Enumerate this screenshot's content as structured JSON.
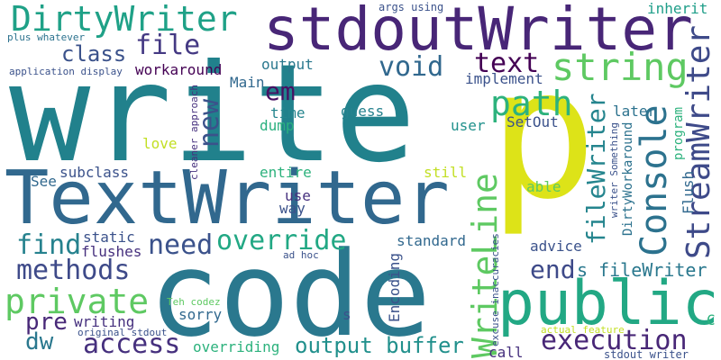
{
  "words": [
    {
      "text": "write",
      "color": "#21818c"
    },
    {
      "text": "code",
      "color": "#2a788e"
    },
    {
      "text": "TextWriter",
      "color": "#31688e"
    },
    {
      "text": "stdoutWriter",
      "color": "#482677"
    },
    {
      "text": "p",
      "color": "#dde318"
    },
    {
      "text": "public",
      "color": "#22a884"
    },
    {
      "text": "DirtyWriter",
      "color": "#1fa187"
    },
    {
      "text": "string",
      "color": "#5ec962"
    },
    {
      "text": "file",
      "color": "#443983"
    },
    {
      "text": "class",
      "color": "#3b528b"
    },
    {
      "text": "void",
      "color": "#31688e"
    },
    {
      "text": "text",
      "color": "#440154"
    },
    {
      "text": "path",
      "color": "#2db27d"
    },
    {
      "text": "em",
      "color": "#471063"
    },
    {
      "text": "new",
      "color": "#3b528b"
    },
    {
      "text": "Console",
      "color": "#2c728e"
    },
    {
      "text": "StreamWriter",
      "color": "#3e4a89"
    },
    {
      "text": "fileWriter",
      "color": "#25858e"
    },
    {
      "text": "override",
      "color": "#22a884"
    },
    {
      "text": "need",
      "color": "#3b528b"
    },
    {
      "text": "find",
      "color": "#26828e"
    },
    {
      "text": "methods",
      "color": "#3e4a89"
    },
    {
      "text": "private",
      "color": "#5ec962"
    },
    {
      "text": "pre",
      "color": "#482878"
    },
    {
      "text": "dw",
      "color": "#2a788e"
    },
    {
      "text": "access",
      "color": "#46307e"
    },
    {
      "text": "execution",
      "color": "#482777"
    },
    {
      "text": "end",
      "color": "#3e4a89"
    },
    {
      "text": "WriteLine",
      "color": "#5ec962"
    },
    {
      "text": "output buffer",
      "color": "#21908c"
    },
    {
      "text": "s fileWriter",
      "color": "#2a788e"
    },
    {
      "text": "workaround",
      "color": "#440154"
    },
    {
      "text": "output",
      "color": "#2a788e"
    },
    {
      "text": "implement",
      "color": "#3b528b"
    },
    {
      "text": "Main",
      "color": "#31688e"
    },
    {
      "text": "time",
      "color": "#25858e"
    },
    {
      "text": "dump",
      "color": "#2ab07f"
    },
    {
      "text": "guess",
      "color": "#26828e"
    },
    {
      "text": "user",
      "color": "#21918c"
    },
    {
      "text": "SetOut",
      "color": "#3b528b"
    },
    {
      "text": "later",
      "color": "#2c728e"
    },
    {
      "text": "program",
      "color": "#2db27d"
    },
    {
      "text": "Flush",
      "color": "#31688e"
    },
    {
      "text": "inherit",
      "color": "#1f9e89"
    },
    {
      "text": "args using",
      "color": "#3b528b"
    },
    {
      "text": "plus whatever",
      "color": "#2c728e"
    },
    {
      "text": "application display",
      "color": "#3b528b"
    },
    {
      "text": "love",
      "color": "#c2df23"
    },
    {
      "text": "subclass",
      "color": "#3b528b"
    },
    {
      "text": "See",
      "color": "#31688e"
    },
    {
      "text": "entire",
      "color": "#2db27d"
    },
    {
      "text": "still",
      "color": "#c2df23"
    },
    {
      "text": "use",
      "color": "#46307e"
    },
    {
      "text": "way",
      "color": "#3b528b"
    },
    {
      "text": "static",
      "color": "#3b528b"
    },
    {
      "text": "flushes",
      "color": "#46307e"
    },
    {
      "text": "standard",
      "color": "#31688e"
    },
    {
      "text": "advice",
      "color": "#3b528b"
    },
    {
      "text": "able",
      "color": "#5ec962"
    },
    {
      "text": "ad hoc",
      "color": "#3b528b"
    },
    {
      "text": "writing",
      "color": "#46307e"
    },
    {
      "text": "original stdout",
      "color": "#3b528b"
    },
    {
      "text": "sorry",
      "color": "#31688e"
    },
    {
      "text": "overriding",
      "color": "#2db27d"
    },
    {
      "text": "Teh codez",
      "color": "#5ec962"
    },
    {
      "text": "call",
      "color": "#46307e"
    },
    {
      "text": "stdout writer",
      "color": "#3b528b"
    },
    {
      "text": "actual feature",
      "color": "#c2df23"
    },
    {
      "text": "Encoding",
      "color": "#3b528b"
    },
    {
      "text": "excuse inaccuracies",
      "color": "#3b528b"
    },
    {
      "text": "cleaner approach",
      "color": "#46307e"
    },
    {
      "text": "DirtyWorkaround",
      "color": "#2c728e"
    },
    {
      "text": "writer Something",
      "color": "#3b528b"
    },
    {
      "text": "s",
      "color": "#3b528b"
    },
    {
      "text": "C",
      "color": "#2db27d"
    }
  ]
}
